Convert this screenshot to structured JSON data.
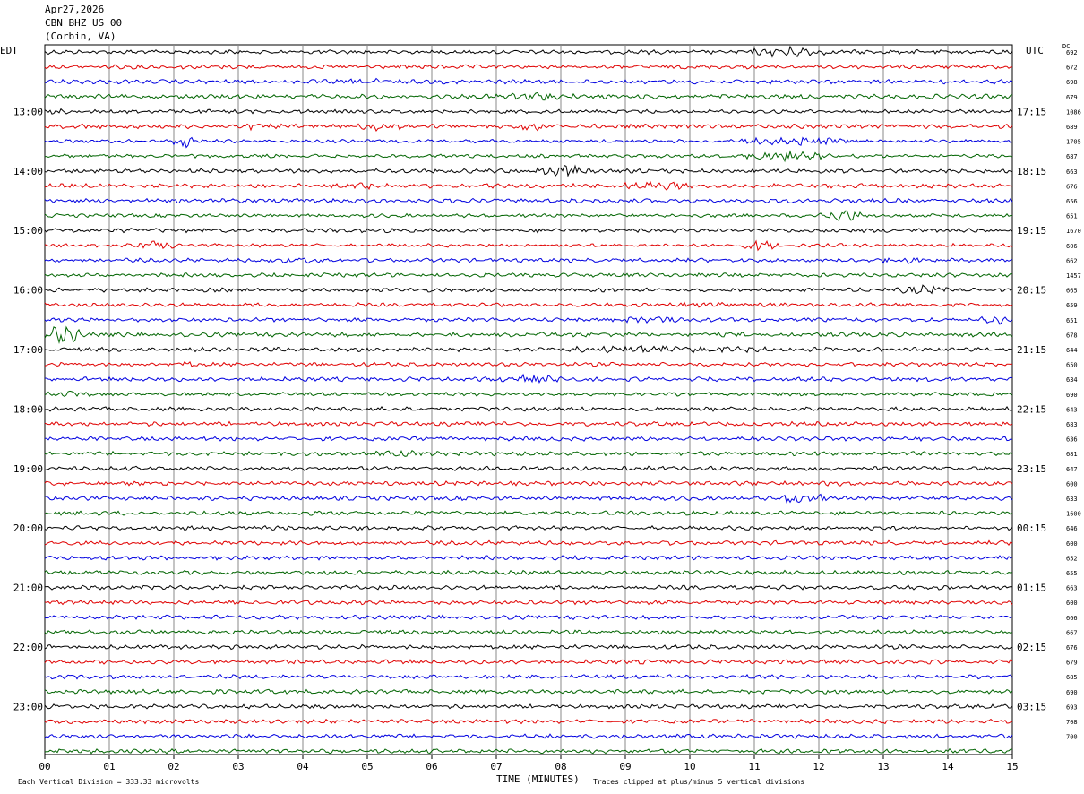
{
  "header": {
    "date": "Apr27,2026",
    "station": "CBN BHZ US 00",
    "location": "(Corbin, VA)"
  },
  "corner": {
    "left": "EDT",
    "right": "UTC",
    "dc": "DC"
  },
  "footer": {
    "scale_note": "Each Vertical Division =  333.33 microvolts",
    "clip_note": "Traces clipped at plus/minus 5 vertical divisions"
  },
  "colors": {
    "black": "#000000",
    "red": "#e00000",
    "blue": "#0000e0",
    "green": "#006400",
    "grid": "#888888"
  },
  "chart_data": {
    "type": "line",
    "xlabel": "TIME (MINUTES)",
    "xlim": [
      0,
      15
    ],
    "x_ticks": [
      "00",
      "01",
      "02",
      "03",
      "04",
      "05",
      "06",
      "07",
      "08",
      "09",
      "10",
      "11",
      "12",
      "13",
      "14",
      "15"
    ],
    "trace_colors": [
      "black",
      "red",
      "blue",
      "green"
    ],
    "trace_count": 48,
    "left_time_labels": [
      "13:00",
      "14:00",
      "15:00",
      "16:00",
      "17:00",
      "18:00",
      "19:00",
      "20:00",
      "21:00",
      "22:00",
      "23:00"
    ],
    "right_time_labels": [
      "17:15",
      "18:15",
      "19:15",
      "20:15",
      "21:15",
      "22:15",
      "23:15",
      "00:15",
      "01:15",
      "02:15",
      "03:15"
    ],
    "dc_offsets": [
      "692",
      "672",
      "698",
      "679",
      "1086",
      "689",
      "1705",
      "687",
      "663",
      "676",
      "656",
      "651",
      "1670",
      "606",
      "662",
      "1457",
      "665",
      "659",
      "651",
      "678",
      "644",
      "650",
      "634",
      "690",
      "643",
      "683",
      "636",
      "681",
      "647",
      "600",
      "633",
      "1600",
      "646",
      "600",
      "652",
      "655",
      "663",
      "600",
      "666",
      "667",
      "676",
      "679",
      "685",
      "690",
      "693",
      "708",
      "700",
      ""
    ]
  }
}
